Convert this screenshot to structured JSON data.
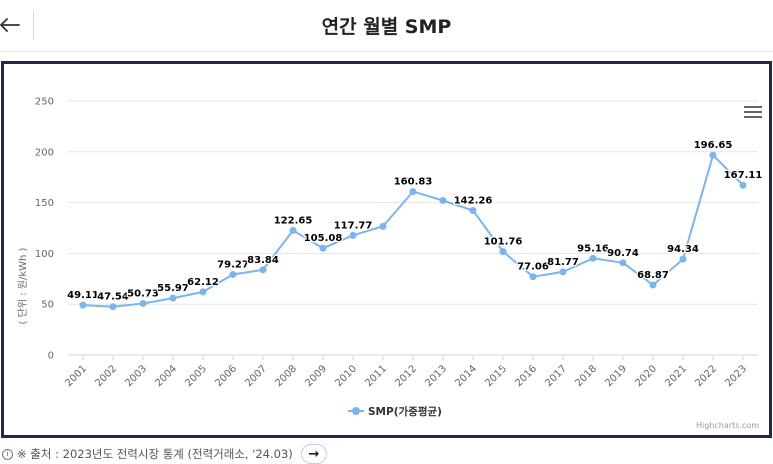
{
  "header": {
    "title": "연간 월별 SMP"
  },
  "chart_data": {
    "type": "line",
    "title": "",
    "xlabel": "",
    "ylabel": "( 단위 : 원/kWh )",
    "ylim": [
      0,
      250
    ],
    "yticks": [
      0,
      50,
      100,
      150,
      200,
      250
    ],
    "grid": true,
    "legend_position": "bottom-center",
    "color": "#7cb5ec",
    "categories": [
      "2001",
      "2002",
      "2003",
      "2004",
      "2005",
      "2006",
      "2007",
      "2008",
      "2009",
      "2010",
      "2011",
      "2012",
      "2013",
      "2014",
      "2015",
      "2016",
      "2017",
      "2018",
      "2019",
      "2020",
      "2021",
      "2022",
      "2023"
    ],
    "series": [
      {
        "name": "SMP(가중평균)",
        "values": [
          49.11,
          47.54,
          50.73,
          55.97,
          62.12,
          79.27,
          83.84,
          122.65,
          105.08,
          117.77,
          126.63,
          160.83,
          152.1,
          142.26,
          101.76,
          77.06,
          81.77,
          95.16,
          90.74,
          68.87,
          94.34,
          196.65,
          167.11
        ],
        "labels": [
          "49.11",
          "47.54",
          "50.73",
          "55.97",
          "62.12",
          "79.27",
          "83.84",
          "122.65",
          "105.08",
          "117.77",
          "",
          "160.83",
          "",
          "142.26",
          "101.76",
          "77.06",
          "81.77",
          "95.16",
          "90.74",
          "68.87",
          "94.34",
          "196.65",
          "167.11"
        ]
      }
    ],
    "credits": "Highcharts.com"
  },
  "footer": {
    "info_icon": "i",
    "source_text": "※ 출처 : 2023년도 전력시장 통계 (전력거래소, '24.03)",
    "link_icon": "→"
  }
}
